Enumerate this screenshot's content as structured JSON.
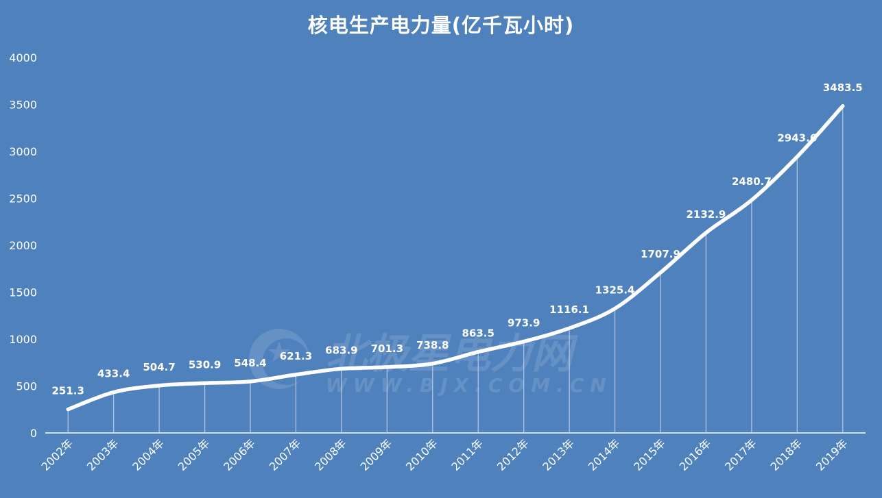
{
  "chart_data": {
    "type": "line",
    "title": "核电生产电力量(亿千瓦小时)",
    "xlabel": "",
    "ylabel": "",
    "ylim": [
      0,
      4000
    ],
    "yticks": [
      0,
      500,
      1000,
      1500,
      2000,
      2500,
      3000,
      3500,
      4000
    ],
    "grid": false,
    "legend": "none",
    "smooth": true,
    "drop_lines": true,
    "categories": [
      "2002年",
      "2003年",
      "2004年",
      "2005年",
      "2006年",
      "2007年",
      "2008年",
      "2009年",
      "2010年",
      "2011年",
      "2012年",
      "2013年",
      "2014年",
      "2015年",
      "2016年",
      "2017年",
      "2018年",
      "2019年"
    ],
    "series": [
      {
        "values": [
          251.3,
          433.4,
          504.7,
          530.9,
          548.4,
          621.3,
          683.9,
          701.3,
          738.8,
          863.5,
          973.9,
          1116.1,
          1325.4,
          1707.9,
          2132.9,
          2480.7,
          2943.6,
          3483.5
        ],
        "labels": [
          "251.3",
          "433.4",
          "504.7",
          "530.9",
          "548.4",
          "621.3",
          "683.9",
          "701.3",
          "738.8",
          "863.5",
          "973.9",
          "1116.1",
          "1325.4",
          "1707.9",
          "2132.9",
          "2480.7",
          "2943.6",
          "3483.5"
        ]
      }
    ],
    "colors": {
      "background": "#4f81bd",
      "line": "#ffffff",
      "axis": "#ffffff",
      "drop_line": "#c6d6ec"
    }
  },
  "watermark": {
    "main": "北极星电力网",
    "sub": "WWW.BJX.COM.CN"
  }
}
